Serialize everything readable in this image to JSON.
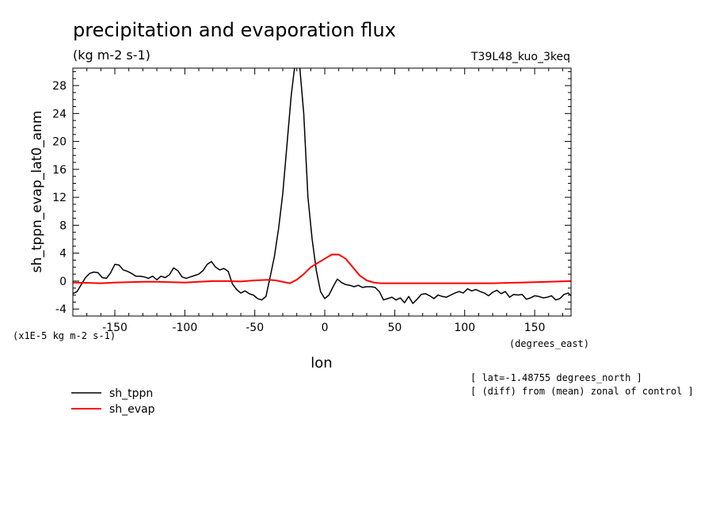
{
  "chart_data": {
    "type": "line",
    "title": "precipitation and evaporation flux",
    "subtitle": "(kg m-2 s-1)",
    "experiment": "T39L48_kuo_3keq",
    "ylabel": "sh_tppn_evap_lat0_anm",
    "xlabel": "lon",
    "xunits": "(degrees_east)",
    "yscale_label": "(x1E-5 kg m-2 s-1)",
    "xlim": [
      -180,
      176
    ],
    "ylim": [
      -5,
      30.5
    ],
    "xticks": [
      -150,
      -100,
      -50,
      0,
      50,
      100,
      150
    ],
    "xtick_labels": [
      "-150",
      "-100",
      "-50",
      "0",
      "50",
      "100",
      "150"
    ],
    "yticks": [
      -4,
      0,
      4,
      8,
      12,
      16,
      20,
      24,
      28
    ],
    "ytick_labels": [
      "-4",
      "0",
      "4",
      "8",
      "12",
      "16",
      "20",
      "24",
      "28"
    ],
    "annotations": [
      "[ lat=-1.48755 degrees_north ]",
      "[ (diff) from (mean) zonal of control ]"
    ],
    "legend_position": "bottom-left",
    "series": [
      {
        "name": "sh_tppn",
        "color": "#000000",
        "x": [
          -180,
          -177,
          -174,
          -171,
          -168,
          -165,
          -162,
          -159,
          -156,
          -153,
          -150,
          -147,
          -144,
          -141,
          -138,
          -135,
          -132,
          -129,
          -126,
          -123,
          -120,
          -117,
          -114,
          -111,
          -108,
          -105,
          -102,
          -99,
          -96,
          -93,
          -90,
          -87,
          -84,
          -81,
          -78,
          -75,
          -72,
          -69,
          -66,
          -63,
          -60,
          -57,
          -54,
          -51,
          -48,
          -45,
          -42,
          -39,
          -36,
          -33,
          -30,
          -27,
          -24,
          -21,
          -18,
          -15,
          -12,
          -9,
          -6,
          -3,
          0,
          3,
          6,
          9,
          12,
          15,
          18,
          21,
          24,
          27,
          30,
          33,
          36,
          39,
          42,
          45,
          48,
          51,
          54,
          57,
          60,
          63,
          66,
          69,
          72,
          75,
          78,
          81,
          84,
          87,
          90,
          93,
          96,
          99,
          102,
          105,
          108,
          111,
          114,
          117,
          120,
          123,
          126,
          129,
          132,
          135,
          138,
          141,
          144,
          147,
          150,
          153,
          156,
          159,
          162,
          165,
          168,
          171,
          174,
          176
        ],
        "y": [
          -1.8,
          -1.5,
          -0.5,
          0.5,
          1.1,
          1.3,
          1.2,
          0.5,
          0.4,
          1.2,
          2.4,
          2.3,
          1.6,
          1.4,
          1.1,
          0.7,
          0.7,
          0.6,
          0.4,
          0.7,
          0.2,
          0.7,
          0.5,
          0.9,
          1.9,
          1.5,
          0.6,
          0.4,
          0.6,
          0.8,
          1.0,
          1.5,
          2.4,
          2.8,
          2.0,
          1.6,
          1.8,
          1.4,
          -0.4,
          -1.2,
          -1.7,
          -1.4,
          -1.8,
          -2.0,
          -2.5,
          -2.7,
          -2.2,
          0.6,
          3.5,
          7.5,
          12.5,
          19.5,
          26.5,
          31.5,
          31.0,
          24.0,
          12.0,
          6.0,
          1.5,
          -1.5,
          -2.5,
          -2.0,
          -0.8,
          0.3,
          -0.2,
          -0.5,
          -0.6,
          -0.8,
          -0.6,
          -0.9,
          -0.8,
          -0.8,
          -0.9,
          -1.5,
          -2.7,
          -2.5,
          -2.3,
          -2.7,
          -2.4,
          -3.1,
          -2.2,
          -3.2,
          -2.6,
          -1.9,
          -1.8,
          -2.1,
          -2.5,
          -2.0,
          -2.2,
          -2.3,
          -2.0,
          -1.7,
          -1.5,
          -1.7,
          -1.1,
          -1.4,
          -1.2,
          -1.5,
          -1.7,
          -2.1,
          -1.6,
          -1.3,
          -1.8,
          -1.5,
          -2.3,
          -1.9,
          -2.0,
          -1.9,
          -2.6,
          -2.4,
          -2.1,
          -2.2,
          -2.4,
          -2.3,
          -2.1,
          -2.7,
          -2.5,
          -1.9,
          -1.7,
          -2.1
        ]
      },
      {
        "name": "sh_evap",
        "color": "#ff0000",
        "x": [
          -180,
          -170,
          -160,
          -150,
          -140,
          -130,
          -120,
          -110,
          -100,
          -90,
          -80,
          -70,
          -60,
          -50,
          -40,
          -35,
          -30,
          -25,
          -20,
          -15,
          -10,
          -5,
          0,
          5,
          10,
          15,
          20,
          25,
          30,
          35,
          40,
          50,
          60,
          80,
          100,
          120,
          140,
          160,
          176
        ],
        "y": [
          -0.2,
          -0.25,
          -0.3,
          -0.2,
          -0.15,
          -0.1,
          -0.1,
          -0.15,
          -0.2,
          -0.1,
          0.0,
          0.0,
          -0.05,
          0.1,
          0.2,
          0.1,
          -0.1,
          -0.3,
          0.2,
          1.0,
          2.0,
          2.6,
          3.2,
          3.8,
          3.8,
          3.2,
          2.0,
          0.8,
          0.1,
          -0.2,
          -0.3,
          -0.3,
          -0.3,
          -0.3,
          -0.3,
          -0.3,
          -0.2,
          -0.1,
          0.0
        ]
      }
    ]
  }
}
